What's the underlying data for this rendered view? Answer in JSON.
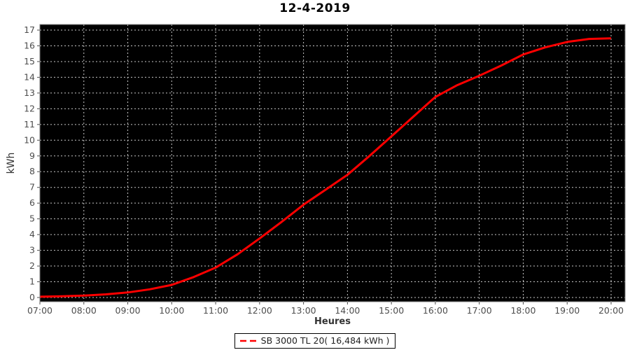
{
  "title": "12-4-2019",
  "legend": {
    "label": "SB 3000 TL 20( 16,484 kWh )",
    "marker_color": "#ff0000"
  },
  "colors": {
    "page_bg": "#ffffff",
    "plot_bg": "#000000",
    "grid": "#c7c7c7",
    "line": "#ff0000",
    "border": "#808080",
    "tick_text": "#4d4d4d",
    "axis_text": "#333333",
    "title_text": "#000000"
  },
  "chart_data": {
    "type": "line",
    "title": "12-4-2019",
    "xlabel": "Heures",
    "ylabel": "kWh",
    "xlim": [
      7,
      20.33
    ],
    "ylim": [
      0,
      17
    ],
    "grid": true,
    "plot_background": "black",
    "legend_position": "bottom-center",
    "xtick_hours": [
      7,
      8,
      9,
      10,
      11,
      12,
      13,
      14,
      15,
      16,
      17,
      18,
      19,
      20
    ],
    "xtick_labels": [
      "07:00",
      "08:00",
      "09:00",
      "10:00",
      "11:00",
      "12:00",
      "13:00",
      "14:00",
      "15:00",
      "16:00",
      "17:00",
      "18:00",
      "19:00",
      "20:00"
    ],
    "ytick_values": [
      0,
      1,
      2,
      3,
      4,
      5,
      6,
      7,
      8,
      9,
      10,
      11,
      12,
      13,
      14,
      15,
      16,
      17
    ],
    "series": [
      {
        "name": "SB 3000 TL 20",
        "total_label": "16,484 kWh",
        "total_kwh": 16.484,
        "color": "#ff0000",
        "x_hours": [
          7.0,
          7.5,
          8.0,
          8.5,
          9.0,
          9.5,
          10.0,
          10.5,
          11.0,
          11.5,
          12.0,
          12.5,
          13.0,
          13.5,
          14.0,
          14.5,
          15.0,
          15.5,
          16.0,
          16.5,
          17.0,
          17.5,
          18.0,
          18.5,
          19.0,
          19.5,
          20.0
        ],
        "values_kwh": [
          0.05,
          0.08,
          0.12,
          0.2,
          0.32,
          0.52,
          0.8,
          1.3,
          1.9,
          2.75,
          3.75,
          4.8,
          5.9,
          6.85,
          7.8,
          9.0,
          10.25,
          11.5,
          12.75,
          13.5,
          14.1,
          14.75,
          15.45,
          15.9,
          16.25,
          16.44,
          16.48
        ]
      }
    ]
  }
}
